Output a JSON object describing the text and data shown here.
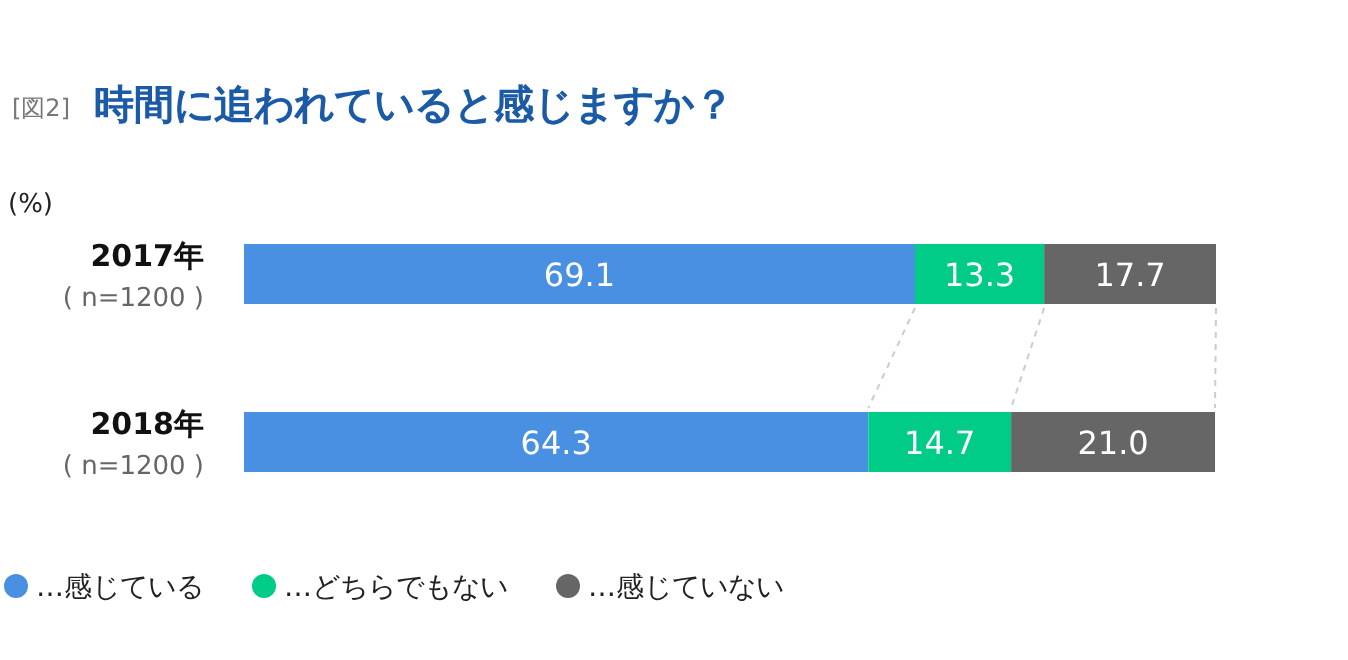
{
  "chart_data": {
    "type": "bar",
    "orientation": "horizontal",
    "stacked": true,
    "title": "時間に追われていると感じますか？",
    "ylabel": "(%)",
    "annotations": [
      "[図2]"
    ],
    "categories": [
      "2017年\n( n=1200 )",
      "2018年\n( n=1200 )"
    ],
    "series": [
      {
        "name": "…感じている",
        "color": "#4a90e2",
        "values": [
          69.1,
          64.3
        ],
        "value_labels": [
          "69.1",
          "64.3"
        ]
      },
      {
        "name": "…どちらでもない",
        "color": "#00cc88",
        "values": [
          13.3,
          14.7
        ],
        "value_labels": [
          "13.3",
          "14.7"
        ]
      },
      {
        "name": "…感じていない",
        "color": "#666666",
        "values": [
          17.7,
          21.0
        ],
        "value_labels": [
          "17.7",
          "21.0"
        ]
      }
    ],
    "legend": "bottom left"
  }
}
